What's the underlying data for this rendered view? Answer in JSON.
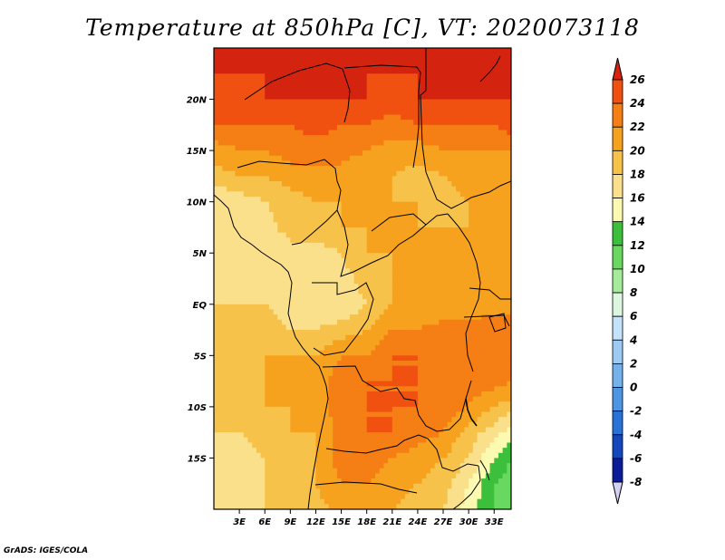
{
  "title": "Temperature at 850hPa [C], VT: 2020073118",
  "credit": "GrADS: IGES/COLA",
  "map": {
    "lon_range": [
      0,
      35
    ],
    "lat_range": [
      -20,
      25
    ],
    "lat_ticks": [
      {
        "value": 20,
        "label": "20N"
      },
      {
        "value": 15,
        "label": "15N"
      },
      {
        "value": 10,
        "label": "10N"
      },
      {
        "value": 5,
        "label": "5N"
      },
      {
        "value": 0,
        "label": "EQ"
      },
      {
        "value": -5,
        "label": "5S"
      },
      {
        "value": -10,
        "label": "10S"
      },
      {
        "value": -15,
        "label": "15S"
      }
    ],
    "lon_ticks": [
      {
        "value": 3,
        "label": "3E"
      },
      {
        "value": 6,
        "label": "6E"
      },
      {
        "value": 9,
        "label": "9E"
      },
      {
        "value": 12,
        "label": "12E"
      },
      {
        "value": 15,
        "label": "15E"
      },
      {
        "value": 18,
        "label": "18E"
      },
      {
        "value": 21,
        "label": "21E"
      },
      {
        "value": 24,
        "label": "24E"
      },
      {
        "value": 27,
        "label": "27E"
      },
      {
        "value": 30,
        "label": "30E"
      },
      {
        "value": 33,
        "label": "33E"
      }
    ]
  },
  "colorbar": {
    "levels": [
      "26",
      "24",
      "22",
      "20",
      "18",
      "16",
      "14",
      "12",
      "10",
      "8",
      "6",
      "4",
      "2",
      "0",
      "-2",
      "-4",
      "-6",
      "-8"
    ],
    "colors": [
      "#d42410",
      "#f05010",
      "#f57e15",
      "#f7a21f",
      "#f7c24a",
      "#fbe08c",
      "#fbfab0",
      "#3cc03c",
      "#68d860",
      "#a4ec9a",
      "#dcf6e0",
      "#c4e2fa",
      "#9ccaf2",
      "#74b2ec",
      "#4c96e4",
      "#2872d8",
      "#1446bc",
      "#0a1c98",
      "#d2d2f2"
    ]
  },
  "chart_data": {
    "type": "heatmap",
    "title": "Temperature at 850hPa [C], VT: 2020073118",
    "variable": "Temperature at 850hPa",
    "units": "C",
    "valid_time": "2020073118",
    "lon_range": [
      0,
      35
    ],
    "lat_range": [
      -20,
      25
    ],
    "color_levels": [
      -8,
      -6,
      -4,
      -2,
      0,
      2,
      4,
      6,
      8,
      10,
      12,
      14,
      16,
      18,
      20,
      22,
      24,
      26
    ],
    "grid_lons": [
      0,
      3,
      6,
      9,
      12,
      15,
      18,
      21,
      24,
      27,
      30,
      33,
      35
    ],
    "grid_lats": [
      25,
      22.5,
      20,
      17.5,
      15,
      12.5,
      10,
      7.5,
      5,
      2.5,
      0,
      -2.5,
      -5,
      -7.5,
      -10,
      -12.5,
      -15,
      -17.5,
      -20
    ],
    "grid_values": [
      [
        26,
        26,
        26,
        26,
        26,
        26,
        26,
        26,
        26,
        26,
        26,
        26,
        26
      ],
      [
        26,
        26,
        26,
        26,
        26,
        26,
        26,
        26,
        26,
        26,
        26,
        26,
        26
      ],
      [
        25,
        25,
        26,
        26,
        26,
        26,
        26,
        25,
        26,
        26,
        26,
        26,
        26
      ],
      [
        24,
        24,
        24,
        24,
        25,
        24,
        24,
        23,
        24,
        24,
        24,
        24,
        25
      ],
      [
        21,
        22,
        22,
        23,
        23,
        23,
        22,
        21,
        21,
        22,
        22,
        22,
        22
      ],
      [
        19,
        20,
        20,
        21,
        21,
        21,
        20,
        20,
        19,
        20,
        21,
        21,
        20
      ],
      [
        16,
        17,
        18,
        19,
        20,
        20,
        20,
        20,
        20,
        19,
        20,
        20,
        20
      ],
      [
        16,
        16,
        17,
        19,
        19,
        20,
        20,
        20,
        20,
        20,
        20,
        20,
        20
      ],
      [
        16,
        16,
        16,
        17,
        17,
        18,
        20,
        20,
        20,
        20,
        20,
        20,
        20
      ],
      [
        17,
        17,
        17,
        16,
        17,
        17,
        19,
        20,
        20,
        20,
        20,
        20,
        20
      ],
      [
        18,
        18,
        18,
        17,
        16,
        16,
        18,
        20,
        20,
        20,
        20,
        21,
        21
      ],
      [
        19,
        19,
        19,
        18,
        18,
        19,
        20,
        22,
        22,
        23,
        23,
        24,
        23
      ],
      [
        19,
        19,
        20,
        20,
        20,
        22,
        22,
        24,
        24,
        23,
        22,
        24,
        23
      ],
      [
        19,
        19,
        20,
        20,
        21,
        23,
        24,
        24,
        24,
        23,
        23,
        23,
        22
      ],
      [
        19,
        19,
        20,
        20,
        21,
        23,
        24,
        24,
        24,
        23,
        22,
        20,
        19
      ],
      [
        18,
        18,
        19,
        20,
        20,
        23,
        24,
        24,
        23,
        22,
        19,
        17,
        15
      ],
      [
        17,
        17,
        18,
        19,
        20,
        23,
        23,
        22,
        21,
        20,
        18,
        14,
        12
      ],
      [
        17,
        17,
        18,
        18,
        20,
        22,
        22,
        21,
        20,
        19,
        16,
        12,
        11
      ],
      [
        17,
        17,
        18,
        18,
        19,
        21,
        21,
        20,
        19,
        18,
        15,
        12,
        11
      ]
    ]
  }
}
